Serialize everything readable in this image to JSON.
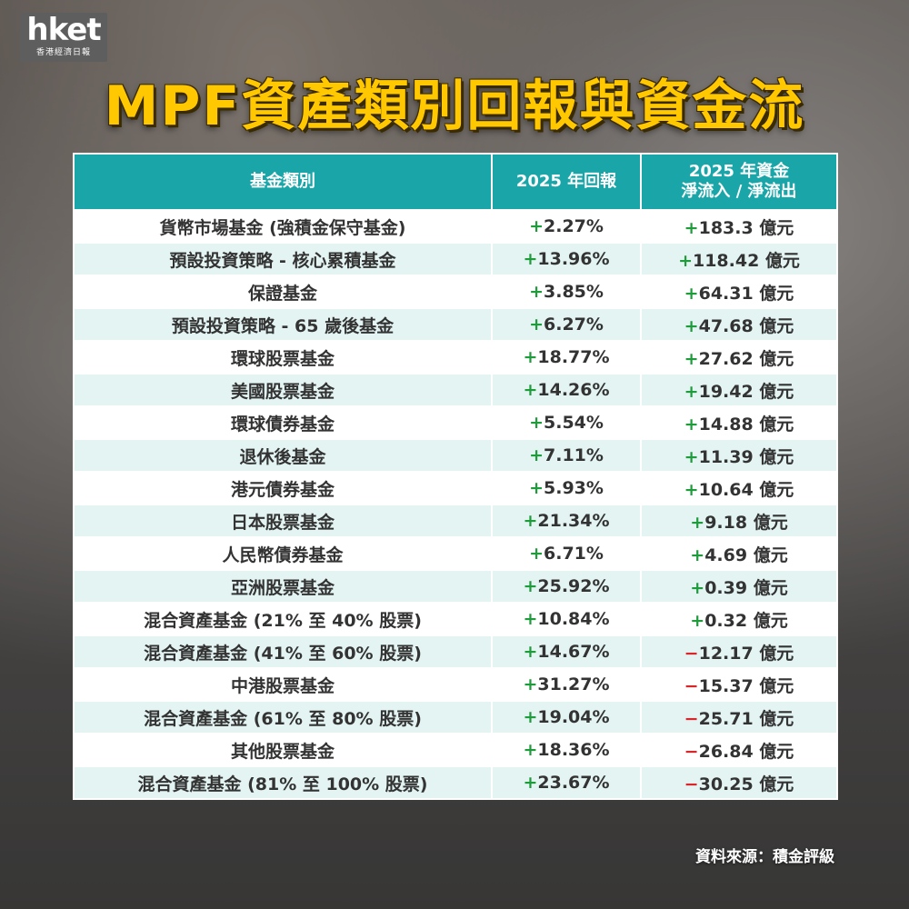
{
  "logo": {
    "main": "hket",
    "sub": "香港經濟日報"
  },
  "title": "MPF資產類別回報與資金流",
  "source": "資料來源：積金評級",
  "colors": {
    "header": "#1aa5a8",
    "title": "#ffc800",
    "positive": "#1e9b3a",
    "negative": "#d9262b",
    "row_alt": "#e3f4f3"
  },
  "chart_data": {
    "type": "table",
    "columns": [
      "基金類別",
      "2025 年回報",
      "2025 年資金淨流入 / 淨流出"
    ],
    "column_lines": [
      [
        "基金類別"
      ],
      [
        "2025 年回報"
      ],
      [
        "2025 年資金",
        "淨流入 / 淨流出"
      ]
    ],
    "rows": [
      {
        "category": "貨幣市場基金 (強積金保守基金)",
        "return_sign": "+",
        "return": "2.27%",
        "flow_sign": "+",
        "flow": "183.3 億元"
      },
      {
        "category": "預設投資策略 - 核心累積基金",
        "return_sign": "+",
        "return": "13.96%",
        "flow_sign": "+",
        "flow": "118.42 億元"
      },
      {
        "category": "保證基金",
        "return_sign": "+",
        "return": "3.85%",
        "flow_sign": "+",
        "flow": "64.31 億元"
      },
      {
        "category": "預設投資策略 - 65 歲後基金",
        "return_sign": "+",
        "return": "6.27%",
        "flow_sign": "+",
        "flow": "47.68 億元"
      },
      {
        "category": "環球股票基金",
        "return_sign": "+",
        "return": "18.77%",
        "flow_sign": "+",
        "flow": "27.62 億元"
      },
      {
        "category": "美國股票基金",
        "return_sign": "+",
        "return": "14.26%",
        "flow_sign": "+",
        "flow": "19.42 億元"
      },
      {
        "category": "環球債券基金",
        "return_sign": "+",
        "return": "5.54%",
        "flow_sign": "+",
        "flow": "14.88 億元"
      },
      {
        "category": "退休後基金",
        "return_sign": "+",
        "return": "7.11%",
        "flow_sign": "+",
        "flow": "11.39 億元"
      },
      {
        "category": "港元債券基金",
        "return_sign": "+",
        "return": "5.93%",
        "flow_sign": "+",
        "flow": "10.64 億元"
      },
      {
        "category": "日本股票基金",
        "return_sign": "+",
        "return": "21.34%",
        "flow_sign": "+",
        "flow": "9.18 億元"
      },
      {
        "category": "人民幣債券基金",
        "return_sign": "+",
        "return": "6.71%",
        "flow_sign": "+",
        "flow": "4.69 億元"
      },
      {
        "category": "亞洲股票基金",
        "return_sign": "+",
        "return": "25.92%",
        "flow_sign": "+",
        "flow": "0.39 億元"
      },
      {
        "category": "混合資產基金 (21% 至 40% 股票)",
        "return_sign": "+",
        "return": "10.84%",
        "flow_sign": "+",
        "flow": "0.32 億元"
      },
      {
        "category": "混合資產基金 (41% 至 60% 股票)",
        "return_sign": "+",
        "return": "14.67%",
        "flow_sign": "−",
        "flow": "12.17 億元"
      },
      {
        "category": "中港股票基金",
        "return_sign": "+",
        "return": "31.27%",
        "flow_sign": "−",
        "flow": "15.37 億元"
      },
      {
        "category": "混合資產基金 (61% 至 80% 股票)",
        "return_sign": "+",
        "return": "19.04%",
        "flow_sign": "−",
        "flow": "25.71 億元"
      },
      {
        "category": "其他股票基金",
        "return_sign": "+",
        "return": "18.36%",
        "flow_sign": "−",
        "flow": "26.84 億元"
      },
      {
        "category": "混合資產基金 (81% 至 100% 股票)",
        "return_sign": "+",
        "return": "23.67%",
        "flow_sign": "−",
        "flow": "30.25 億元"
      }
    ]
  }
}
